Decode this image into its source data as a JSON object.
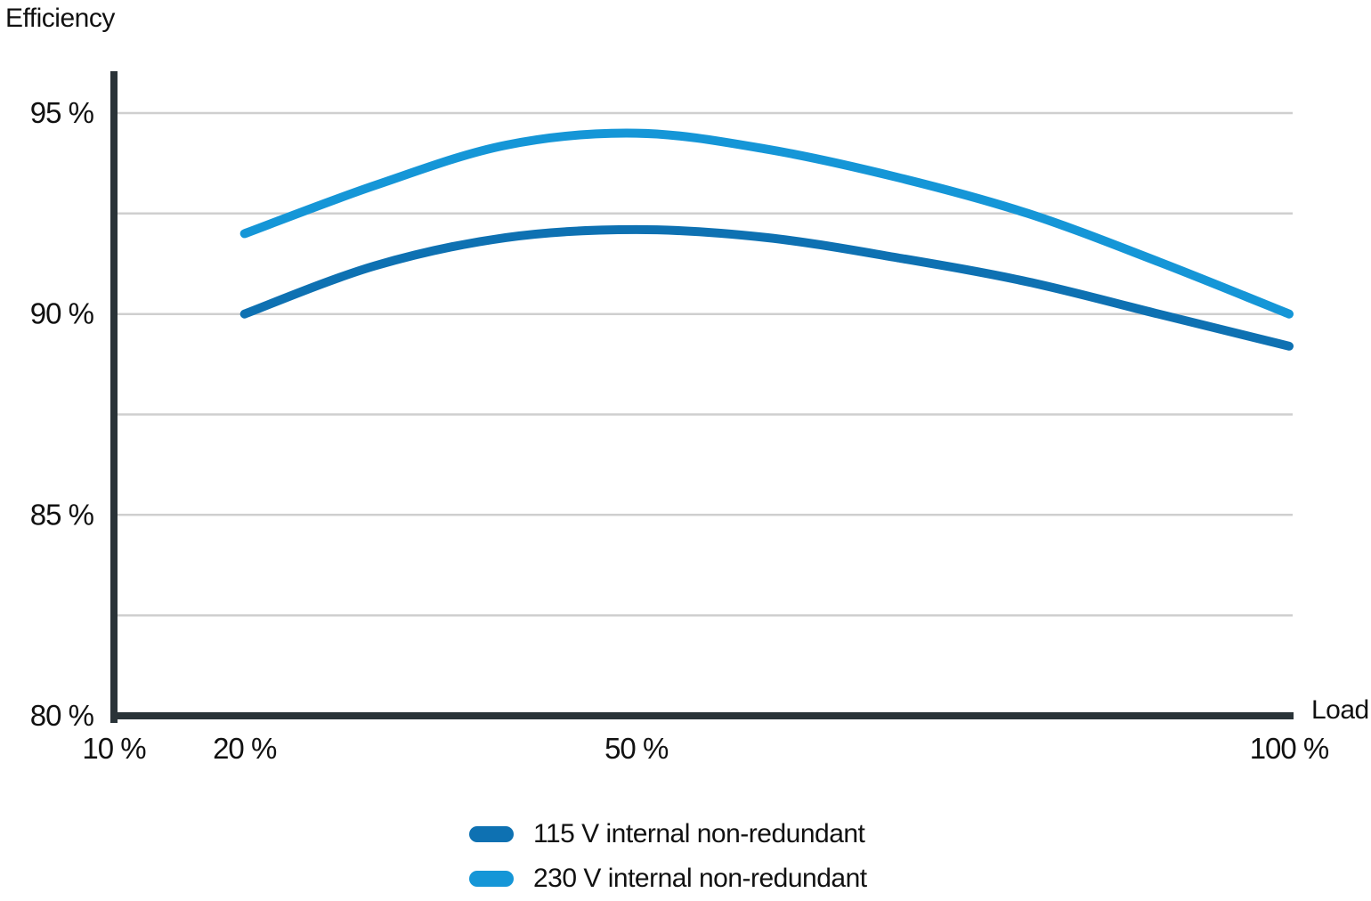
{
  "chart_data": {
    "type": "line",
    "ylabel": "Efficiency",
    "xlabel": "Load",
    "xlim": [
      10,
      100
    ],
    "ylim": [
      80,
      95
    ],
    "x": [
      20,
      30,
      40,
      50,
      60,
      70,
      80,
      90,
      100
    ],
    "series": [
      {
        "name": "115 V internal non-redundant",
        "color": "#0e71b2",
        "values": [
          90.0,
          91.2,
          91.9,
          92.1,
          91.9,
          91.4,
          90.8,
          90.0,
          89.2
        ]
      },
      {
        "name": "230 V internal non-redundant",
        "color": "#1596d7",
        "values": [
          92.0,
          93.2,
          94.2,
          94.5,
          94.1,
          93.4,
          92.5,
          91.3,
          90.0
        ]
      }
    ],
    "x_ticks": [
      {
        "value": 10,
        "label": "10 %"
      },
      {
        "value": 20,
        "label": "20 %"
      },
      {
        "value": 50,
        "label": "50 %"
      },
      {
        "value": 100,
        "label": "100 %"
      }
    ],
    "y_ticks": [
      {
        "value": 95,
        "label": "95 %"
      },
      {
        "value": 90,
        "label": "90 %"
      },
      {
        "value": 85,
        "label": "85 %"
      },
      {
        "value": 80,
        "label": "80 %"
      }
    ],
    "gridlines_y": [
      82.5,
      85,
      87.5,
      90,
      92.5,
      95
    ],
    "grid_on": true,
    "legend_position": "bottom-center",
    "colors": {
      "grid": "#cfcfcf",
      "axis": "#2a3338",
      "text": "#111111",
      "background": "#ffffff"
    }
  }
}
